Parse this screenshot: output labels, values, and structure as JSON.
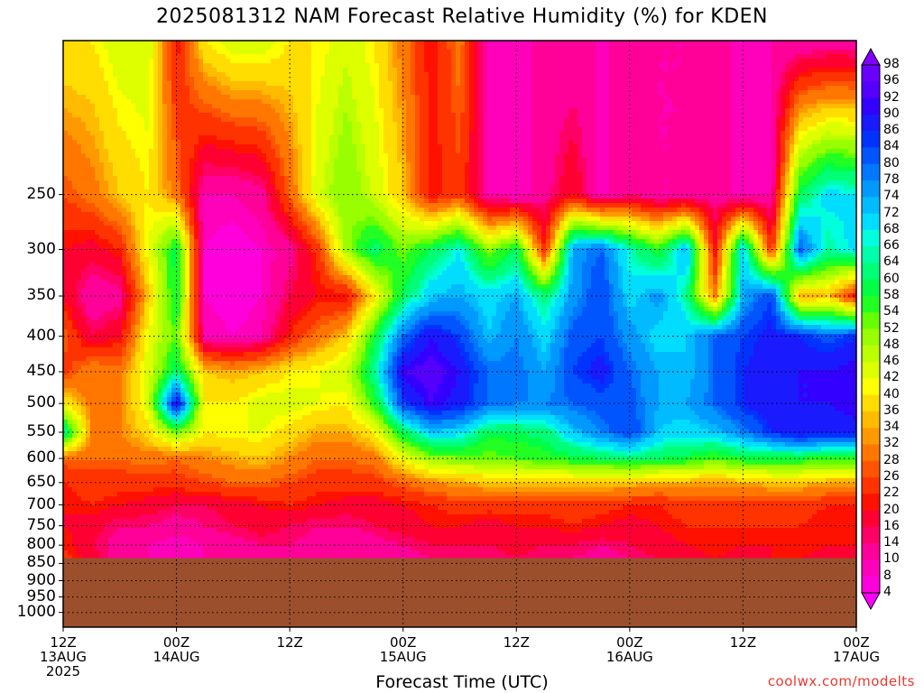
{
  "title": "2025081312 NAM Forecast Relative Humidity (%) for KDEN",
  "chart_data": {
    "type": "heatmap",
    "title": "2025081312 NAM Forecast Relative Humidity (%) for KDEN",
    "xlabel": "Forecast Time (UTC)",
    "ylabel": "",
    "variable": "Relative Humidity (%)",
    "station": "KDEN",
    "model": "NAM",
    "init": "2025081312",
    "x_hours_range": [
      0,
      84
    ],
    "y_pressure_range": [
      1050,
      150
    ],
    "y_scale": "log",
    "grid": true,
    "terrain_surface_hPa": 835,
    "terrain_color": "#9b4f2c",
    "y_ticks": [
      250,
      300,
      350,
      400,
      450,
      500,
      550,
      600,
      650,
      700,
      750,
      800,
      850,
      900,
      950,
      1000
    ],
    "x_ticks": [
      {
        "hour": 0,
        "lines": [
          "12Z",
          "13AUG",
          "2025"
        ]
      },
      {
        "hour": 12,
        "lines": [
          "00Z",
          "14AUG"
        ]
      },
      {
        "hour": 24,
        "lines": [
          "12Z"
        ]
      },
      {
        "hour": 36,
        "lines": [
          "00Z",
          "15AUG"
        ]
      },
      {
        "hour": 48,
        "lines": [
          "12Z"
        ]
      },
      {
        "hour": 60,
        "lines": [
          "00Z",
          "16AUG"
        ]
      },
      {
        "hour": 72,
        "lines": [
          "12Z"
        ]
      },
      {
        "hour": 84,
        "lines": [
          "00Z",
          "17AUG"
        ]
      }
    ],
    "colorbar_levels": [
      98,
      96,
      92,
      90,
      86,
      84,
      80,
      78,
      74,
      72,
      68,
      66,
      64,
      60,
      58,
      54,
      52,
      48,
      46,
      42,
      40,
      36,
      34,
      32,
      28,
      26,
      22,
      20,
      16,
      14,
      10,
      8,
      4
    ],
    "colorbar_colors": [
      "#8000ff",
      "#6a00ff",
      "#5500ff",
      "#3300ff",
      "#1a1aff",
      "#0033ff",
      "#0055ff",
      "#0077ff",
      "#0099ff",
      "#00bbff",
      "#00ddff",
      "#00ffdd",
      "#00ffaa",
      "#00ff77",
      "#00ff44",
      "#22ff22",
      "#66ff00",
      "#99ff00",
      "#bbff00",
      "#ddff00",
      "#ffff00",
      "#ffdd00",
      "#ffbb00",
      "#ff9900",
      "#ff7700",
      "#ff5500",
      "#ff3300",
      "#ff1100",
      "#ff0033",
      "#ff0066",
      "#ff0099",
      "#ff00bb",
      "#ff00dd",
      "#ff00ff"
    ],
    "rh_field": {
      "hours": [
        0,
        3,
        6,
        9,
        12,
        15,
        18,
        21,
        24,
        27,
        30,
        33,
        36,
        39,
        42,
        45,
        48,
        51,
        54,
        57,
        60,
        63,
        66,
        69,
        72,
        75,
        78,
        81,
        84
      ],
      "pressures": [
        150,
        250,
        300,
        350,
        400,
        450,
        500,
        550,
        600,
        650,
        700,
        750,
        800,
        835
      ],
      "values": [
        [
          40,
          40,
          45,
          45,
          20,
          40,
          45,
          45,
          40,
          40,
          45,
          40,
          30,
          20,
          30,
          10,
          10,
          10,
          10,
          10,
          10,
          10,
          10,
          10,
          10,
          10,
          10,
          10,
          10
        ],
        [
          26,
          30,
          36,
          40,
          30,
          10,
          10,
          12,
          28,
          45,
          52,
          45,
          36,
          20,
          25,
          10,
          8,
          12,
          20,
          8,
          14,
          10,
          10,
          12,
          8,
          10,
          60,
          70,
          68
        ],
        [
          20,
          18,
          22,
          42,
          60,
          8,
          6,
          8,
          12,
          24,
          50,
          62,
          52,
          60,
          68,
          50,
          60,
          22,
          76,
          80,
          66,
          56,
          74,
          20,
          72,
          22,
          82,
          64,
          70
        ],
        [
          20,
          10,
          12,
          36,
          60,
          8,
          6,
          8,
          16,
          20,
          20,
          40,
          60,
          72,
          74,
          70,
          74,
          62,
          76,
          84,
          70,
          76,
          64,
          30,
          74,
          84,
          34,
          36,
          20
        ],
        [
          28,
          16,
          20,
          42,
          54,
          10,
          8,
          10,
          22,
          30,
          36,
          58,
          80,
          90,
          84,
          72,
          78,
          70,
          82,
          84,
          76,
          70,
          72,
          80,
          84,
          88,
          86,
          82,
          86
        ],
        [
          24,
          32,
          30,
          44,
          62,
          36,
          34,
          36,
          40,
          42,
          46,
          64,
          92,
          94,
          90,
          80,
          80,
          74,
          84,
          88,
          80,
          74,
          72,
          80,
          86,
          88,
          90,
          90,
          92
        ],
        [
          40,
          30,
          30,
          44,
          92,
          40,
          40,
          44,
          44,
          42,
          40,
          56,
          84,
          92,
          88,
          80,
          78,
          78,
          80,
          82,
          82,
          74,
          74,
          80,
          86,
          90,
          90,
          90,
          92
        ],
        [
          66,
          32,
          32,
          38,
          52,
          40,
          42,
          42,
          38,
          34,
          34,
          40,
          60,
          72,
          70,
          60,
          60,
          62,
          72,
          78,
          84,
          72,
          70,
          72,
          78,
          86,
          90,
          88,
          88
        ],
        [
          28,
          28,
          28,
          30,
          28,
          32,
          34,
          36,
          32,
          28,
          28,
          30,
          42,
          50,
          52,
          52,
          54,
          56,
          58,
          60,
          62,
          60,
          58,
          54,
          58,
          58,
          58,
          56,
          56
        ],
        [
          22,
          24,
          24,
          24,
          24,
          26,
          28,
          28,
          26,
          24,
          24,
          24,
          28,
          32,
          34,
          36,
          36,
          36,
          36,
          36,
          36,
          34,
          34,
          34,
          34,
          36,
          36,
          34,
          34
        ],
        [
          20,
          22,
          20,
          18,
          16,
          16,
          18,
          20,
          22,
          20,
          18,
          18,
          20,
          22,
          24,
          24,
          24,
          24,
          24,
          24,
          22,
          22,
          24,
          24,
          24,
          24,
          24,
          22,
          22
        ],
        [
          20,
          18,
          14,
          14,
          12,
          14,
          16,
          18,
          16,
          14,
          14,
          16,
          18,
          20,
          20,
          18,
          20,
          20,
          22,
          20,
          18,
          20,
          22,
          22,
          22,
          22,
          22,
          20,
          22
        ],
        [
          22,
          16,
          12,
          10,
          8,
          10,
          12,
          14,
          14,
          12,
          10,
          12,
          14,
          16,
          16,
          16,
          18,
          16,
          16,
          14,
          16,
          18,
          20,
          22,
          20,
          20,
          22,
          20,
          20
        ],
        [
          24,
          18,
          12,
          10,
          8,
          10,
          12,
          12,
          12,
          10,
          10,
          10,
          12,
          14,
          14,
          14,
          16,
          14,
          14,
          12,
          14,
          16,
          18,
          20,
          18,
          20,
          20,
          18,
          18
        ]
      ]
    }
  },
  "credit": "coolwx.com/modelts"
}
